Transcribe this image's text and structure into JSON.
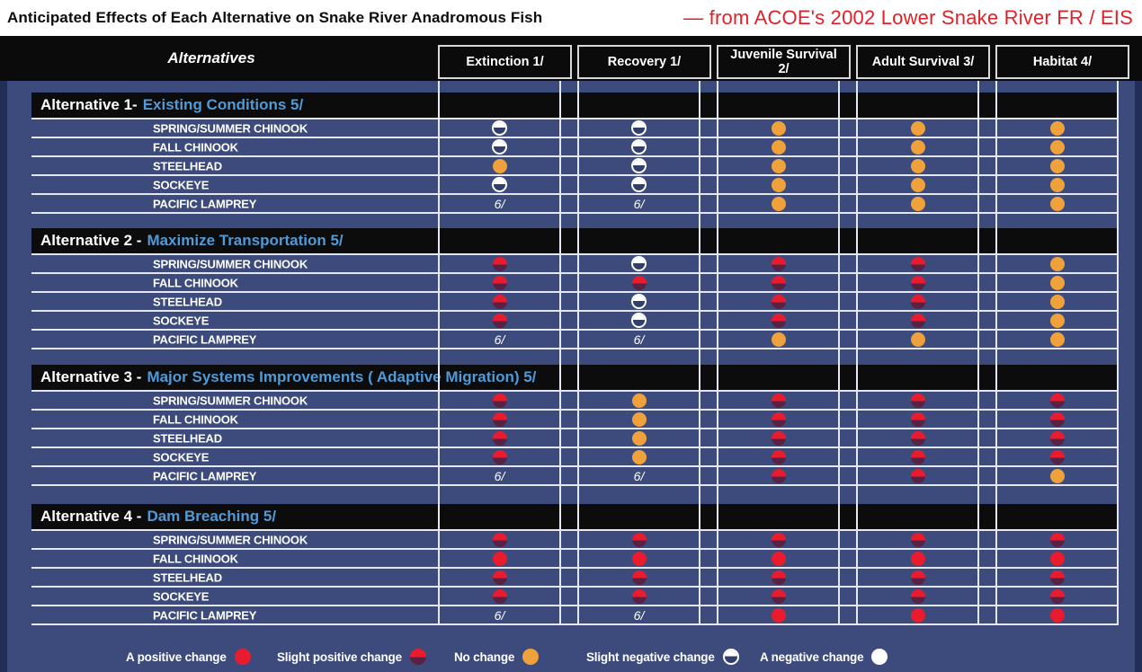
{
  "title_bar": {
    "title": "Anticipated Effects of Each Alternative on Snake River Anadromous Fish",
    "source": "— from ACOE's 2002 Lower Snake River FR / EIS"
  },
  "chart_data": {
    "type": "table",
    "corner_label": "Alternatives",
    "columns": [
      "Extinction 1/",
      "Recovery 1/",
      "Juvenile Survival 2/",
      "Adult Survival 3/",
      "Habitat 4/"
    ],
    "footnote_marker": "6/",
    "alternatives": [
      {
        "prefix": "Alternative 1-",
        "name": "Existing Conditions 5/",
        "rows": [
          {
            "species": "SPRING/SUMMER CHINOOK",
            "effects": [
              "slight-negative",
              "slight-negative",
              "no-change",
              "no-change",
              "no-change"
            ]
          },
          {
            "species": "FALL CHINOOK",
            "effects": [
              "slight-negative",
              "slight-negative",
              "no-change",
              "no-change",
              "no-change"
            ]
          },
          {
            "species": "STEELHEAD",
            "effects": [
              "no-change",
              "slight-negative",
              "no-change",
              "no-change",
              "no-change"
            ]
          },
          {
            "species": "SOCKEYE",
            "effects": [
              "slight-negative",
              "slight-negative",
              "no-change",
              "no-change",
              "no-change"
            ]
          },
          {
            "species": "PACIFIC LAMPREY",
            "effects": [
              "footnote",
              "footnote",
              "no-change",
              "no-change",
              "no-change"
            ]
          }
        ]
      },
      {
        "prefix": "Alternative 2 -",
        "name": "Maximize Transportation 5/",
        "rows": [
          {
            "species": "SPRING/SUMMER CHINOOK",
            "effects": [
              "slight-positive",
              "slight-negative",
              "slight-positive",
              "slight-positive",
              "no-change"
            ]
          },
          {
            "species": "FALL CHINOOK",
            "effects": [
              "slight-positive",
              "slight-positive",
              "slight-positive",
              "slight-positive",
              "no-change"
            ]
          },
          {
            "species": "STEELHEAD",
            "effects": [
              "slight-positive",
              "slight-negative",
              "slight-positive",
              "slight-positive",
              "no-change"
            ]
          },
          {
            "species": "SOCKEYE",
            "effects": [
              "slight-positive",
              "slight-negative",
              "slight-positive",
              "slight-positive",
              "no-change"
            ]
          },
          {
            "species": "PACIFIC LAMPREY",
            "effects": [
              "footnote",
              "footnote",
              "no-change",
              "no-change",
              "no-change"
            ]
          }
        ]
      },
      {
        "prefix": "Alternative 3 -",
        "name": "Major Systems Improvements ( Adaptive Migration) 5/",
        "rows": [
          {
            "species": "SPRING/SUMMER CHINOOK",
            "effects": [
              "slight-positive",
              "no-change",
              "slight-positive",
              "slight-positive",
              "slight-positive"
            ]
          },
          {
            "species": "FALL CHINOOK",
            "effects": [
              "slight-positive",
              "no-change",
              "slight-positive",
              "slight-positive",
              "slight-positive"
            ]
          },
          {
            "species": "STEELHEAD",
            "effects": [
              "slight-positive",
              "no-change",
              "slight-positive",
              "slight-positive",
              "slight-positive"
            ]
          },
          {
            "species": "SOCKEYE",
            "effects": [
              "slight-positive",
              "no-change",
              "slight-positive",
              "slight-positive",
              "slight-positive"
            ]
          },
          {
            "species": "PACIFIC LAMPREY",
            "effects": [
              "footnote",
              "footnote",
              "slight-positive",
              "slight-positive",
              "no-change"
            ]
          }
        ]
      },
      {
        "prefix": "Alternative 4 -",
        "name": "Dam Breaching 5/",
        "rows": [
          {
            "species": "SPRING/SUMMER CHINOOK",
            "effects": [
              "slight-positive",
              "slight-positive",
              "slight-positive",
              "slight-positive",
              "slight-positive"
            ]
          },
          {
            "species": "FALL CHINOOK",
            "effects": [
              "positive",
              "positive",
              "positive",
              "positive",
              "positive"
            ]
          },
          {
            "species": "STEELHEAD",
            "effects": [
              "slight-positive",
              "slight-positive",
              "slight-positive",
              "slight-positive",
              "slight-positive"
            ]
          },
          {
            "species": "SOCKEYE",
            "effects": [
              "slight-positive",
              "slight-positive",
              "slight-positive",
              "slight-positive",
              "slight-positive"
            ]
          },
          {
            "species": "PACIFIC LAMPREY",
            "effects": [
              "footnote",
              "footnote",
              "positive",
              "positive",
              "positive"
            ]
          }
        ]
      }
    ]
  },
  "legend": {
    "items": [
      {
        "label": "A positive change",
        "symbol": "positive"
      },
      {
        "label": "Slight positive change",
        "symbol": "slight-positive"
      },
      {
        "label": "No change",
        "symbol": "no-change"
      },
      {
        "label": "Slight negative change",
        "symbol": "slight-negative"
      },
      {
        "label": "A negative change",
        "symbol": "negative"
      }
    ]
  },
  "colors": {
    "positive_red": "#e81c2e",
    "no_change_orange": "#efa13b",
    "negative_white": "#ffffff",
    "table_blue": "#3d4b7c",
    "band_black": "#0b0b0b",
    "alt_name_blue": "#4f9ad7",
    "title_source_red": "#e32028"
  }
}
